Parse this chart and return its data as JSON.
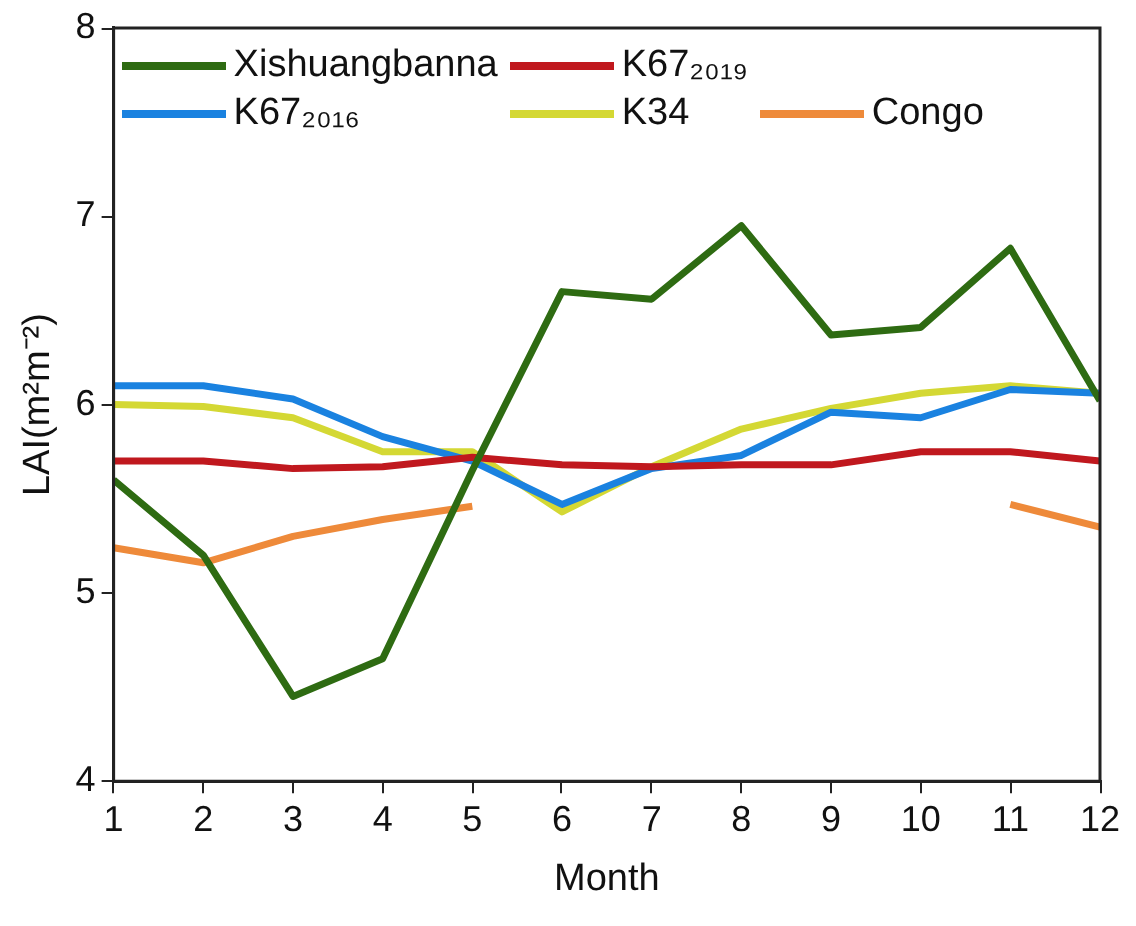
{
  "chart_data": {
    "type": "line",
    "xlabel": "Month",
    "ylabel": "LAI(m²m⁻²)",
    "x": [
      1,
      2,
      3,
      4,
      5,
      6,
      7,
      8,
      9,
      10,
      11,
      12
    ],
    "xlim": [
      1,
      12
    ],
    "xticks": [
      1,
      2,
      3,
      4,
      5,
      6,
      7,
      8,
      9,
      10,
      11,
      12
    ],
    "ylim": [
      4,
      8
    ],
    "yticks": [
      4,
      5,
      6,
      7,
      8
    ],
    "grid": false,
    "legend": "top",
    "marker": "none",
    "line_style": "solid",
    "series": [
      {
        "name": "Xishuangbanna",
        "color": "#2e6b12",
        "values": [
          5.6,
          5.2,
          4.45,
          4.65,
          5.65,
          6.6,
          6.56,
          6.95,
          6.37,
          6.41,
          6.83,
          6.02
        ]
      },
      {
        "name": "K67₂₀₁₉",
        "color": "#c0181e",
        "values": [
          5.7,
          5.7,
          5.66,
          5.67,
          5.72,
          5.68,
          5.67,
          5.68,
          5.68,
          5.75,
          5.75,
          5.7
        ]
      },
      {
        "name": "K67₂₀₁₆",
        "color": "#1a82e0",
        "values": [
          6.1,
          6.1,
          6.03,
          5.83,
          5.7,
          5.47,
          5.66,
          5.73,
          5.96,
          5.93,
          6.08,
          6.06
        ]
      },
      {
        "name": "K34",
        "color": "#d4d834",
        "values": [
          6.0,
          5.99,
          5.93,
          5.75,
          5.75,
          5.43,
          5.67,
          5.87,
          5.98,
          6.06,
          6.1,
          6.06
        ]
      },
      {
        "name": "Congo",
        "color": "#ee8a3a",
        "values": [
          5.24,
          5.16,
          5.3,
          5.39,
          5.46,
          null,
          null,
          null,
          null,
          null,
          5.47,
          5.35
        ]
      }
    ]
  }
}
